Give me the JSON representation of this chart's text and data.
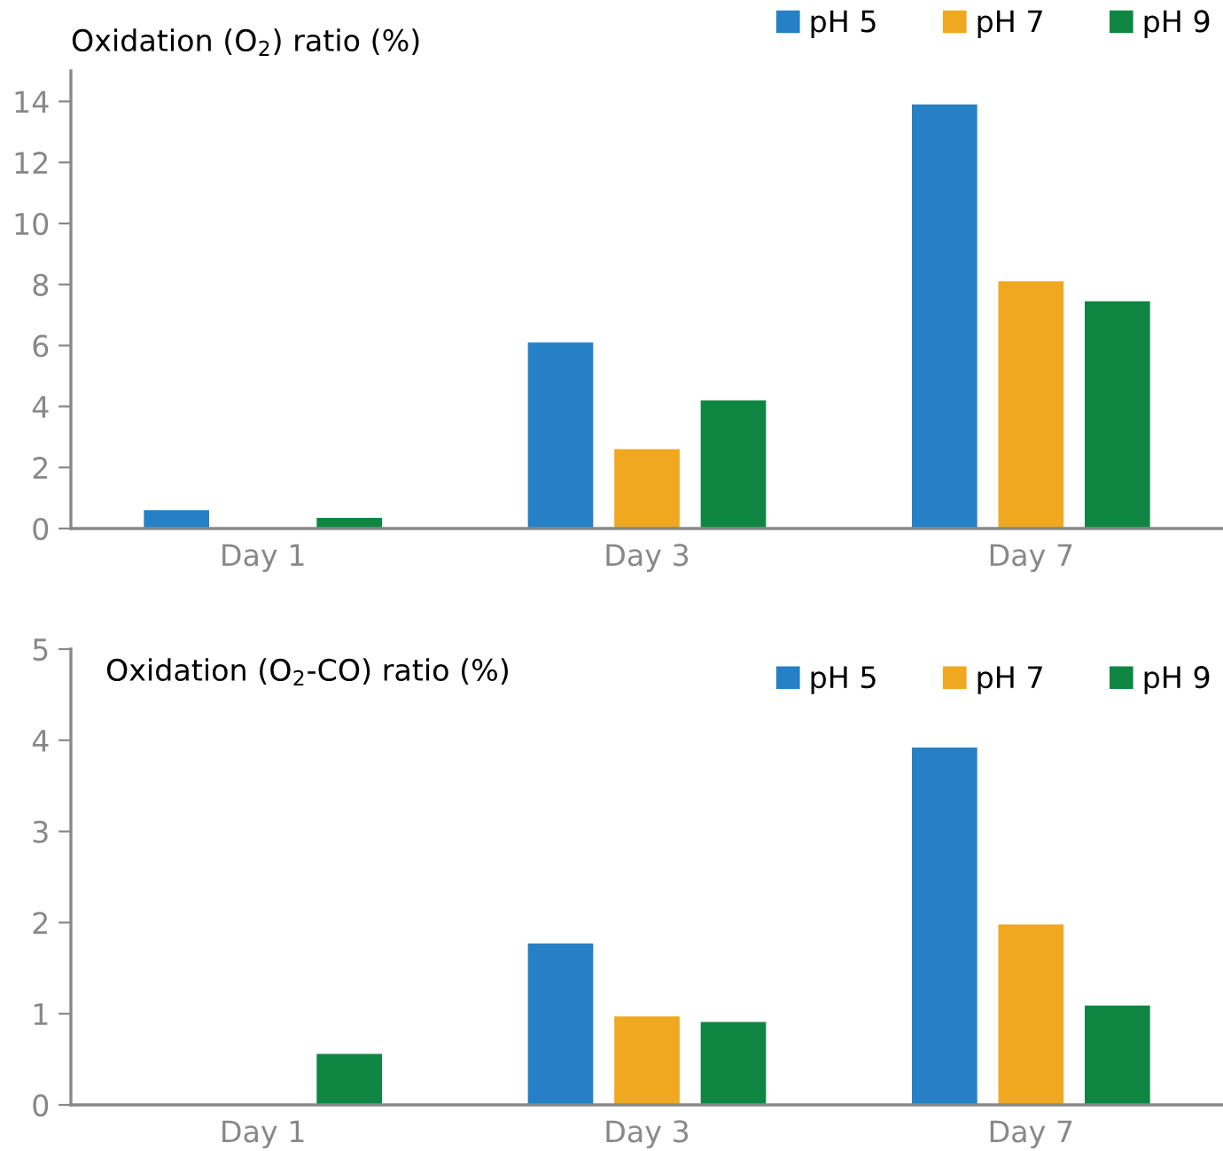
{
  "chart_data": [
    {
      "type": "bar",
      "title": "Oxidation (O$_{2}$) ratio (%)",
      "categories": [
        "Day 1",
        "Day 3",
        "Day 7"
      ],
      "ylim": [
        0,
        15
      ],
      "yticks": [
        0,
        2,
        4,
        6,
        8,
        10,
        12,
        14
      ],
      "grid": false,
      "legend": "top right",
      "series": [
        {
          "name": "pH 5",
          "color": "#2580c6",
          "values": [
            0.6,
            6.1,
            13.9
          ]
        },
        {
          "name": "pH 7",
          "color": "#f0a820",
          "values": [
            0,
            2.6,
            8.1
          ]
        },
        {
          "name": "pH 9",
          "color": "#0e8642",
          "values": [
            0.35,
            4.2,
            7.45
          ]
        }
      ]
    },
    {
      "type": "bar",
      "title": "Oxidation (O$_{2}$-CO) ratio (%)",
      "categories": [
        "Day 1",
        "Day 3",
        "Day 7"
      ],
      "ylim": [
        0,
        5
      ],
      "yticks": [
        0,
        1,
        2,
        3,
        4,
        5
      ],
      "grid": false,
      "legend": "top right",
      "series": [
        {
          "name": "pH 5",
          "color": "#2580c6",
          "values": [
            0,
            1.77,
            3.92
          ]
        },
        {
          "name": "pH 7",
          "color": "#f0a820",
          "values": [
            0,
            0.97,
            1.98
          ]
        },
        {
          "name": "pH 9",
          "color": "#0e8642",
          "values": [
            0.56,
            0.91,
            1.09
          ]
        }
      ]
    }
  ]
}
